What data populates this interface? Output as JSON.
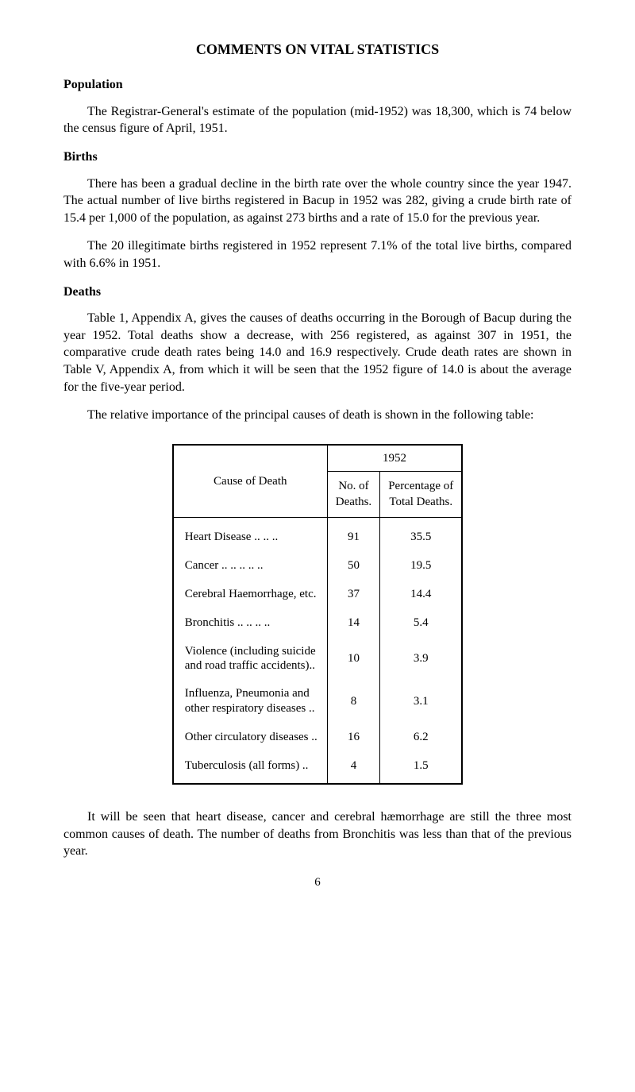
{
  "title": "COMMENTS ON VITAL STATISTICS",
  "sections": {
    "population": {
      "heading": "Population",
      "p1": "The Registrar-General's estimate of the population (mid-1952) was 18,300, which is 74 below the census figure of April, 1951."
    },
    "births": {
      "heading": "Births",
      "p1": "There has been a gradual decline in the birth rate over the whole country since the year 1947. The actual number of live births registered in Bacup in 1952 was 282, giving a crude birth rate of 15.4 per 1,000 of the population, as against 273 births and a rate of 15.0 for the previous year.",
      "p2": "The 20 illegitimate births registered in 1952 represent 7.1% of the total live births, compared with 6.6% in 1951."
    },
    "deaths": {
      "heading": "Deaths",
      "p1": "Table 1, Appendix A, gives the causes of deaths occurring in the Borough of Bacup during the year 1952. Total deaths show a decrease, with 256 registered, as against 307 in 1951, the comparative crude death rates being 14.0 and 16.9 respectively. Crude death rates are shown in Table V, Appendix A, from which it will be seen that the 1952 figure of 14.0 is about the average for the five-year period.",
      "p2": "The relative importance of the principal causes of death is shown in the following table:"
    },
    "conclusion": {
      "p1": "It will be seen that heart disease, cancer and cerebral hæmorrhage are still the three most common causes of death. The number of deaths from Bronchitis was less than that of the previous year."
    }
  },
  "table": {
    "cause_header": "Cause of Death",
    "year": "1952",
    "col_deaths": "No. of\nDeaths.",
    "col_percent": "Percentage of\nTotal Deaths.",
    "rows": [
      {
        "cause": "Heart Disease      .. .. ..",
        "deaths": "91",
        "percent": "35.5"
      },
      {
        "cause": "Cancer   .. .. .. .. ..",
        "deaths": "50",
        "percent": "19.5"
      },
      {
        "cause": "Cerebral Haemorrhage, etc.",
        "deaths": "37",
        "percent": "14.4"
      },
      {
        "cause": "Bronchitis     .. .. .. ..",
        "deaths": "14",
        "percent": "5.4"
      },
      {
        "cause": "Violence (including suicide\nand road traffic accidents)..",
        "deaths": "10",
        "percent": "3.9"
      },
      {
        "cause": "Influenza, Pneumonia and\nother respiratory diseases ..",
        "deaths": "8",
        "percent": "3.1"
      },
      {
        "cause": "Other circulatory diseases ..",
        "deaths": "16",
        "percent": "6.2"
      },
      {
        "cause": "Tuberculosis (all forms)   ..",
        "deaths": "4",
        "percent": "1.5"
      }
    ]
  },
  "page_number": "6"
}
